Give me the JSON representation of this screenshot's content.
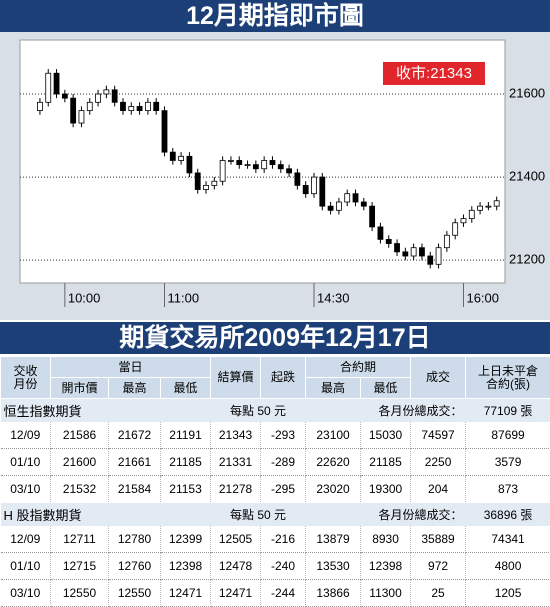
{
  "chart_data": {
    "type": "candlestick",
    "title": "12月期指即市圖",
    "annotation": "收市:21343",
    "x": [
      0,
      5,
      10,
      15,
      20,
      25,
      30,
      35,
      40,
      45,
      50,
      55,
      60,
      65,
      70,
      75,
      80,
      85,
      90,
      95,
      100,
      105,
      110,
      115,
      120,
      125,
      130,
      135,
      140,
      145,
      150,
      155,
      160,
      165,
      170,
      175,
      180,
      185,
      190,
      195,
      200,
      205,
      210,
      215,
      220,
      225,
      230,
      235,
      240,
      245,
      250,
      255,
      260,
      265,
      270,
      275
    ],
    "open": [
      21560,
      21580,
      21650,
      21600,
      21590,
      21530,
      21560,
      21580,
      21600,
      21610,
      21580,
      21560,
      21570,
      21560,
      21580,
      21560,
      21460,
      21440,
      21450,
      21410,
      21370,
      21380,
      21390,
      21440,
      21440,
      21430,
      21430,
      21420,
      21440,
      21430,
      21420,
      21410,
      21380,
      21360,
      21400,
      21330,
      21320,
      21340,
      21360,
      21340,
      21330,
      21280,
      21250,
      21240,
      21220,
      21210,
      21230,
      21210,
      21190,
      21230,
      21260,
      21290,
      21300,
      21320,
      21330,
      21330
    ],
    "high": [
      21590,
      21660,
      21660,
      21610,
      21600,
      21570,
      21590,
      21610,
      21620,
      21620,
      21590,
      21580,
      21580,
      21590,
      21590,
      21570,
      21470,
      21460,
      21460,
      21420,
      21390,
      21400,
      21450,
      21450,
      21450,
      21440,
      21440,
      21450,
      21450,
      21440,
      21430,
      21420,
      21390,
      21410,
      21410,
      21340,
      21350,
      21370,
      21370,
      21350,
      21340,
      21290,
      21260,
      21250,
      21230,
      21240,
      21240,
      21220,
      21240,
      21270,
      21300,
      21310,
      21330,
      21340,
      21340,
      21353
    ],
    "low": [
      21550,
      21570,
      21590,
      21580,
      21520,
      21520,
      21550,
      21570,
      21590,
      21570,
      21550,
      21550,
      21550,
      21550,
      21550,
      21450,
      21430,
      21430,
      21400,
      21360,
      21360,
      21370,
      21380,
      21430,
      21420,
      21420,
      21410,
      21410,
      21420,
      21410,
      21400,
      21370,
      21350,
      21350,
      21320,
      21310,
      21310,
      21330,
      21330,
      21320,
      21270,
      21240,
      21230,
      21210,
      21200,
      21200,
      21200,
      21180,
      21180,
      21220,
      21250,
      21280,
      21290,
      21310,
      21320,
      21320
    ],
    "close": [
      21580,
      21650,
      21600,
      21590,
      21530,
      21560,
      21580,
      21600,
      21610,
      21580,
      21560,
      21570,
      21560,
      21580,
      21560,
      21460,
      21440,
      21450,
      21410,
      21370,
      21380,
      21390,
      21440,
      21440,
      21430,
      21430,
      21420,
      21440,
      21430,
      21420,
      21410,
      21380,
      21360,
      21400,
      21330,
      21320,
      21340,
      21360,
      21340,
      21330,
      21280,
      21250,
      21240,
      21220,
      21210,
      21230,
      21210,
      21190,
      21230,
      21260,
      21290,
      21300,
      21320,
      21330,
      21330,
      21343
    ],
    "xlim": [
      -12,
      280
    ],
    "xticks": [
      {
        "value": 15,
        "label": "10:00"
      },
      {
        "value": 75,
        "label": "11:00"
      },
      {
        "value": 165,
        "label": "14:30"
      },
      {
        "value": 255,
        "label": "16:00"
      }
    ],
    "ylim": [
      21145,
      21730
    ],
    "yticks": [
      21200,
      21400,
      21600
    ],
    "grid": true
  },
  "table": {
    "title": "期貨交易所2009年12月17日",
    "header_top": [
      "交收\n月份",
      "當日",
      "結算價",
      "起跌",
      "合約期",
      "成交",
      "上日未平倉\n合約(張)"
    ],
    "header_sub": [
      "開市價",
      "最高",
      "最低",
      "最高",
      "最低"
    ],
    "sections": [
      {
        "name": "恒生指數期貨",
        "point": "每點 50 元",
        "total_label": "各月份總成交：",
        "total": "77109 張",
        "rows": [
          [
            "12/09",
            21586,
            21672,
            21191,
            21343,
            -293,
            23100,
            15030,
            74597,
            87699
          ],
          [
            "01/10",
            21600,
            21661,
            21185,
            21331,
            -289,
            22620,
            21185,
            2250,
            3579
          ],
          [
            "03/10",
            21532,
            21584,
            21153,
            21278,
            -295,
            23020,
            19300,
            204,
            873
          ]
        ]
      },
      {
        "name": "H 股指數期貨",
        "point": "每點 50 元",
        "total_label": "各月份總成交：",
        "total": "36896 張",
        "rows": [
          [
            "12/09",
            12711,
            12780,
            12399,
            12505,
            -216,
            13879,
            8930,
            35889,
            74341
          ],
          [
            "01/10",
            12715,
            12760,
            12398,
            12478,
            -240,
            13530,
            12398,
            972,
            4800
          ],
          [
            "03/10",
            12550,
            12550,
            12471,
            12471,
            -244,
            13866,
            11300,
            25,
            1205
          ]
        ]
      }
    ]
  }
}
